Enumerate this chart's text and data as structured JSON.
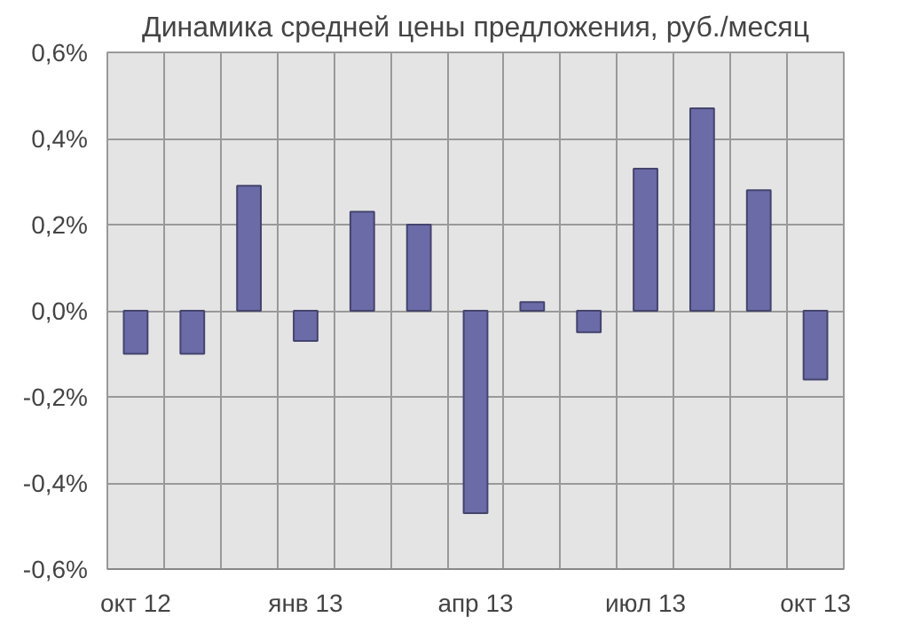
{
  "chart_data": {
    "type": "bar",
    "title": "Динамика средней цены предложения, руб./месяц",
    "categories": [
      "окт 12",
      null,
      null,
      "янв 13",
      null,
      null,
      "апр 13",
      null,
      null,
      "июл 13",
      null,
      null,
      "окт 13"
    ],
    "values": [
      -0.1,
      -0.1,
      0.29,
      -0.07,
      0.23,
      0.2,
      -0.47,
      0.02,
      -0.05,
      0.33,
      0.47,
      0.28,
      -0.16
    ],
    "color": "#6b6ba8",
    "ylim": [
      -0.6,
      0.6
    ],
    "yticks": [
      {
        "value": -0.6,
        "label": "-0,6%"
      },
      {
        "value": -0.4,
        "label": "-0,4%"
      },
      {
        "value": -0.2,
        "label": "-0,2%"
      },
      {
        "value": 0,
        "label": "0,0%"
      },
      {
        "value": 0.2,
        "label": "0,2%"
      },
      {
        "value": 0.4,
        "label": "0,4%"
      },
      {
        "value": 0.6,
        "label": "0,6%"
      }
    ],
    "grid": true
  }
}
